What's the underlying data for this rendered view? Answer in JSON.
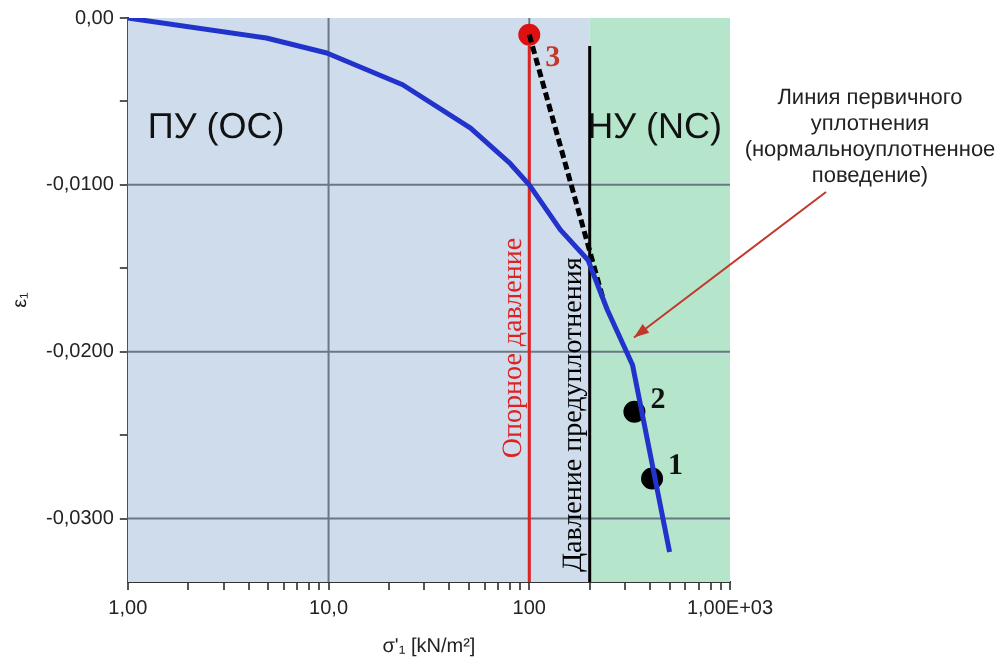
{
  "chart_data": {
    "type": "line",
    "xlabel": "σ'₁ [kN/m²]",
    "ylabel": "ε₁",
    "log": "x",
    "grid": true,
    "legend": false,
    "xlim": [
      1,
      1000
    ],
    "ylim": [
      -0.0338,
      0
    ],
    "xticks": [
      {
        "value": 1,
        "label": "1,00"
      },
      {
        "value": 2,
        "label": null
      },
      {
        "value": 3,
        "label": null
      },
      {
        "value": 4,
        "label": null
      },
      {
        "value": 5,
        "label": null
      },
      {
        "value": 6,
        "label": null
      },
      {
        "value": 7,
        "label": null
      },
      {
        "value": 8,
        "label": null
      },
      {
        "value": 9,
        "label": null
      },
      {
        "value": 10,
        "label": "10,0"
      },
      {
        "value": 20,
        "label": null
      },
      {
        "value": 30,
        "label": null
      },
      {
        "value": 40,
        "label": null
      },
      {
        "value": 50,
        "label": null
      },
      {
        "value": 60,
        "label": null
      },
      {
        "value": 70,
        "label": null
      },
      {
        "value": 80,
        "label": null
      },
      {
        "value": 90,
        "label": null
      },
      {
        "value": 100,
        "label": "100"
      },
      {
        "value": 200,
        "label": null
      },
      {
        "value": 300,
        "label": null
      },
      {
        "value": 400,
        "label": null
      },
      {
        "value": 500,
        "label": null
      },
      {
        "value": 600,
        "label": null
      },
      {
        "value": 700,
        "label": null
      },
      {
        "value": 800,
        "label": null
      },
      {
        "value": 900,
        "label": null
      },
      {
        "value": 1000,
        "label": "1,00E+03"
      }
    ],
    "yticks": [
      {
        "value": 0,
        "label": "0,00"
      },
      {
        "value": -0.005,
        "label": null
      },
      {
        "value": -0.01,
        "label": "-0,0100"
      },
      {
        "value": -0.015,
        "label": null
      },
      {
        "value": -0.02,
        "label": "-0,0200"
      },
      {
        "value": -0.025,
        "label": null
      },
      {
        "value": -0.03,
        "label": "-0,0300"
      }
    ],
    "series": [
      {
        "color": "#2233cc",
        "marker": "none",
        "line_style": "solid",
        "x": [
          1,
          4.9,
          9.8,
          23.4,
          51,
          80,
          100,
          143,
          196,
          245,
          327,
          500
        ],
        "values": [
          0,
          -0.0012,
          -0.0021,
          -0.004,
          -0.0066,
          -0.0087,
          -0.01,
          -0.0127,
          -0.0145,
          -0.0175,
          -0.0208,
          -0.032
        ]
      },
      {
        "color": "#000000",
        "marker": "none",
        "line_style": "dashed",
        "x": [
          100,
          234
        ],
        "values": [
          -0.001,
          -0.0169
        ]
      },
      {
        "type": "scatter",
        "color": "#000000",
        "marker": "circle",
        "x": [
          409,
          334
        ],
        "values": [
          -0.0276,
          -0.0236
        ]
      },
      {
        "type": "scatter",
        "color": "#dd1111",
        "marker": "circle",
        "x": [
          100
        ],
        "values": [
          -0.001
        ]
      }
    ],
    "bands": [
      {
        "axis": "x",
        "from": 1,
        "to": 200,
        "label": "ПУ (OC)",
        "color": "#cfdcec"
      },
      {
        "axis": "x",
        "from": 200,
        "to": 1000,
        "label": "НУ (NC)",
        "color": "#b5e6cc"
      }
    ],
    "ref_lines": [
      {
        "axis": "x",
        "value": 100,
        "label": "Опорное давление",
        "color": "#dd2222"
      },
      {
        "axis": "x",
        "value": 200,
        "label": "Давление предуплотнения",
        "color": "#000000"
      }
    ],
    "annotations": [
      {
        "text": "1",
        "x": 409,
        "y": -0.0276
      },
      {
        "text": "2",
        "x": 334,
        "y": -0.0236
      },
      {
        "text": "3",
        "x": 100,
        "y": -0.001
      },
      "Линия первичного уплотнения (нормальноуплотненное поведение)"
    ]
  }
}
